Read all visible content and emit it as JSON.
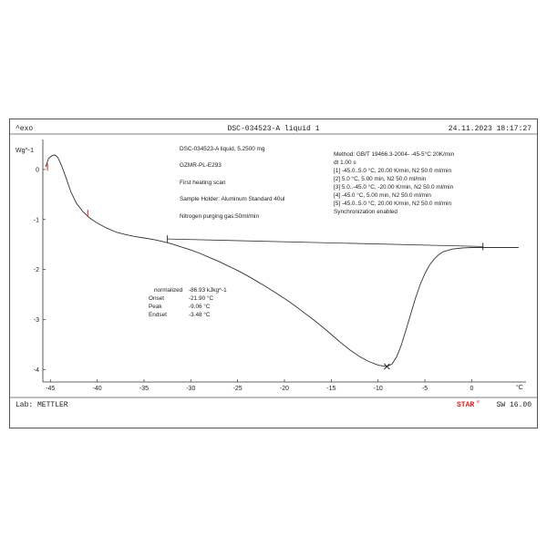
{
  "header": {
    "exo_label": "^exo",
    "title": "DSC-034523-A liquid 1",
    "datetime": "24.11.2023 18:17:27"
  },
  "footer": {
    "lab": "Lab: METTLER",
    "star_label": "STAR",
    "star_sup": "e",
    "software": "SW 16.00"
  },
  "sample_info": [
    "DSC-034523-A liquid, 5.2500 mg",
    "GZMR-PL-E293",
    "First heating scan",
    "Sample Holder: Aluminum Standard 40ul",
    "Nitrogen purging gas:50ml/min"
  ],
  "method_info": [
    "Method: GB/T 19466.3-2004- -45-5°C  20K/min",
    "dt 1.00 s",
    "[1] -45.0..5.0 °C, 20.00 K/min,  N2 50.0 ml/min",
    "[2] 5.0 °C, 5.00 min,             N2 50.0 ml/min",
    "[3] 5.0..-45.0 °C, -20.00 K/min,  N2 50.0 ml/min",
    "[4] -45.0 °C, 5.00 min,           N2 50.0 ml/min",
    "[5] -45.0..5.0 °C, 20.00 K/min,  N2 50.0 ml/min",
    "Synchronization enabled"
  ],
  "results": [
    {
      "label": "normalized",
      "value": "-86.93 kJkg^-1"
    },
    {
      "label": "Onset",
      "value": "-21.90 °C"
    },
    {
      "label": "Peak",
      "value": "-9.06 °C"
    },
    {
      "label": "Endset",
      "value": "-3.48 °C"
    }
  ],
  "chart_data": {
    "type": "line",
    "ylabel": "Wg^-1",
    "xlabel": "°C",
    "xlim": [
      -45.8,
      5.8
    ],
    "ylim": [
      -4.25,
      0.6
    ],
    "x_ticks": [
      -45,
      -40,
      -35,
      -30,
      -25,
      -20,
      -15,
      -10,
      -5,
      0
    ],
    "y_ticks": [
      0,
      -1,
      -2,
      -3,
      -4
    ],
    "series": [
      {
        "color": "#333333",
        "x": [
          -45.5,
          -45.2,
          -44.8,
          -44.5,
          -44.2,
          -43.8,
          -43.3,
          -42.8,
          -42.2,
          -41.5,
          -40.8,
          -40.0,
          -39.0,
          -38.0,
          -37.0,
          -36.0,
          -35.0,
          -34.0,
          -33.0,
          -32.0,
          -31.0,
          -30.0,
          -29.0,
          -28.0,
          -27.0,
          -26.0,
          -25.0,
          -24.0,
          -23.0,
          -22.0,
          -21.0,
          -20.0,
          -19.0,
          -18.0,
          -17.0,
          -16.0,
          -15.0,
          -14.0,
          -13.0,
          -12.0,
          -11.0,
          -10.0,
          -9.5,
          -9.06,
          -8.5,
          -8.0,
          -7.5,
          -7.0,
          -6.5,
          -6.0,
          -5.5,
          -5.0,
          -4.5,
          -4.0,
          -3.5,
          -3.0,
          -2.0,
          -1.0,
          0.0,
          1.0,
          2.0,
          3.0,
          4.0,
          5.0
        ],
        "y": [
          0.05,
          0.22,
          0.28,
          0.29,
          0.24,
          0.08,
          -0.18,
          -0.45,
          -0.68,
          -0.85,
          -0.97,
          -1.07,
          -1.17,
          -1.25,
          -1.3,
          -1.34,
          -1.37,
          -1.4,
          -1.44,
          -1.49,
          -1.55,
          -1.61,
          -1.68,
          -1.76,
          -1.84,
          -1.93,
          -2.02,
          -2.12,
          -2.23,
          -2.34,
          -2.46,
          -2.58,
          -2.71,
          -2.85,
          -2.99,
          -3.14,
          -3.3,
          -3.46,
          -3.61,
          -3.74,
          -3.84,
          -3.91,
          -3.93,
          -3.94,
          -3.89,
          -3.74,
          -3.5,
          -3.2,
          -2.88,
          -2.57,
          -2.3,
          -2.08,
          -1.91,
          -1.79,
          -1.7,
          -1.64,
          -1.59,
          -1.57,
          -1.56,
          -1.56,
          -1.56,
          -1.56,
          -1.56,
          -1.56
        ]
      },
      {
        "color": "#333333",
        "x": [
          -32.5,
          1.2
        ],
        "y": [
          -1.39,
          -1.54
        ]
      }
    ],
    "markers": [
      {
        "kind": "tick",
        "x": -32.5,
        "y": -1.39
      },
      {
        "kind": "tick",
        "x": 1.2,
        "y": -1.54
      },
      {
        "kind": "cross",
        "x": -9.06,
        "y": -3.94
      },
      {
        "kind": "red-tick",
        "x": -45.3,
        "y": 0.05
      },
      {
        "kind": "red-tick",
        "x": -41.0,
        "y": -0.88
      }
    ]
  }
}
